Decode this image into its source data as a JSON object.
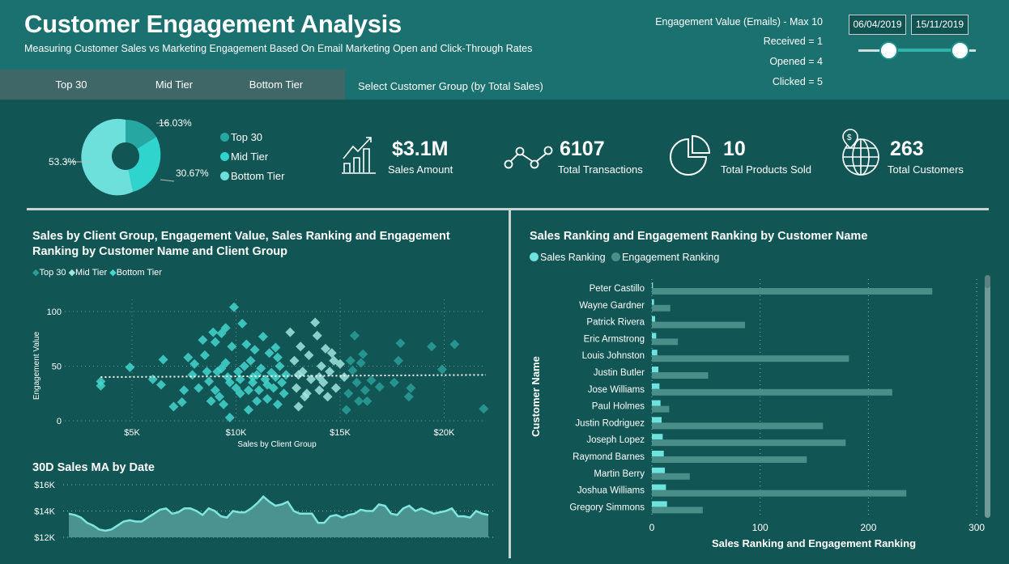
{
  "header": {
    "title": "Customer Engagement Analysis",
    "subtitle": "Measuring Customer Sales vs Marketing Engagement Based On Email Marketing Open and Click-Through Rates",
    "tabs": [
      "Top 30",
      "Mid Tier",
      "Bottom Tier"
    ],
    "select_label": "Select Customer Group (by Total Sales)",
    "engagement_lines": [
      "Engagement Value (Emails) - Max 10",
      "Received = 1",
      "Opened = 4",
      "Clicked = 5"
    ],
    "date_start": "06/04/2019",
    "date_end": "15/11/2019",
    "slider_range_fraction": [
      0.25,
      0.86
    ]
  },
  "colors": {
    "header": "#1b7170",
    "body": "#115555",
    "top30": "#2a9f99",
    "mid": "#9fe6e1",
    "bottom": "#45d6ce",
    "sales_rank": "#6ee3dd",
    "eng_rank": "#4a8e8a"
  },
  "donut": {
    "slices": [
      {
        "name": "Top 30",
        "pct": 16.03,
        "label": "16.03%",
        "color": "#27a7a1"
      },
      {
        "name": "Mid Tier",
        "pct": 30.67,
        "label": "30.67%",
        "color": "#2fd4cd"
      },
      {
        "name": "Bottom Tier",
        "pct": 53.3,
        "label": "53.3%",
        "color": "#6ee0db"
      }
    ]
  },
  "kpis": [
    {
      "value": "$3.1M",
      "label": "Sales Amount",
      "icon": "bar-growth-icon"
    },
    {
      "value": "6107",
      "label": "Total Transactions",
      "icon": "network-nodes-icon"
    },
    {
      "value": "10",
      "label": "Total Products Sold",
      "icon": "pie-chart-icon"
    },
    {
      "value": "263",
      "label": "Total Customers",
      "icon": "globe-dollar-icon"
    }
  ],
  "chart_data": [
    {
      "type": "scatter",
      "title": "Sales by Client Group, Engagement Value, Sales Ranking and Engagement Ranking by Customer Name and Client Group",
      "legend": [
        "Top 30",
        "Mid Tier",
        "Bottom Tier"
      ],
      "xlabel": "Sales by Client Group",
      "ylabel": "Engagement Value",
      "xticks": [
        {
          "v": 5,
          "label": "$5K"
        },
        {
          "v": 10,
          "label": "$10K"
        },
        {
          "v": 15,
          "label": "$15K"
        },
        {
          "v": 20,
          "label": "$20K"
        }
      ],
      "yticks": [
        {
          "v": 0,
          "label": "0"
        },
        {
          "v": 50,
          "label": "50"
        },
        {
          "v": 100,
          "label": "100"
        }
      ],
      "xlim": [
        1.8,
        22
      ],
      "ylim": [
        0,
        100
      ],
      "trend": {
        "x": [
          3.5,
          22
        ],
        "y": [
          40,
          42
        ]
      },
      "points": [
        [
          3.5,
          36,
          "B"
        ],
        [
          3.5,
          32,
          "B"
        ],
        [
          4.9,
          49,
          "B"
        ],
        [
          6,
          38,
          "B"
        ],
        [
          6.4,
          33,
          "B"
        ],
        [
          6.5,
          56,
          "B"
        ],
        [
          7,
          13,
          "B"
        ],
        [
          7.4,
          17,
          "B"
        ],
        [
          7.5,
          28,
          "B"
        ],
        [
          7.7,
          58,
          "B"
        ],
        [
          7.9,
          42,
          "B"
        ],
        [
          8,
          52,
          "B"
        ],
        [
          8.2,
          30,
          "B"
        ],
        [
          8.4,
          74,
          "B"
        ],
        [
          8.5,
          60,
          "B"
        ],
        [
          8.7,
          36,
          "B"
        ],
        [
          8.8,
          18,
          "B"
        ],
        [
          8.9,
          81,
          "B"
        ],
        [
          9,
          72,
          "B"
        ],
        [
          9.1,
          45,
          "B"
        ],
        [
          9.2,
          22,
          "B"
        ],
        [
          9.3,
          80,
          "B"
        ],
        [
          9.4,
          15,
          "B"
        ],
        [
          9.5,
          85,
          "B"
        ],
        [
          9.5,
          53,
          "B"
        ],
        [
          9.6,
          40,
          "B"
        ],
        [
          9.7,
          3,
          "B"
        ],
        [
          9.8,
          68,
          "B"
        ],
        [
          9.9,
          104,
          "B"
        ],
        [
          10,
          30,
          "B"
        ],
        [
          10.1,
          45,
          "B"
        ],
        [
          10.2,
          25,
          "B"
        ],
        [
          10.3,
          89,
          "B"
        ],
        [
          10.5,
          70,
          "B"
        ],
        [
          10.6,
          10,
          "B"
        ],
        [
          10.7,
          55,
          "B"
        ],
        [
          10.8,
          35,
          "B"
        ],
        [
          10.9,
          65,
          "B"
        ],
        [
          11,
          42,
          "B"
        ],
        [
          11.1,
          28,
          "B"
        ],
        [
          11.2,
          48,
          "B"
        ],
        [
          11.3,
          77,
          "B"
        ],
        [
          11.4,
          38,
          "B"
        ],
        [
          11.5,
          20,
          "B"
        ],
        [
          11.6,
          62,
          "B"
        ],
        [
          11.7,
          44,
          "B"
        ],
        [
          11.8,
          30,
          "B"
        ],
        [
          11.9,
          67,
          "B"
        ],
        [
          12,
          15,
          "B"
        ],
        [
          12.1,
          50,
          "B"
        ],
        [
          12.2,
          35,
          "B"
        ],
        [
          12.3,
          25,
          "B"
        ],
        [
          12.4,
          42,
          "B"
        ],
        [
          8.6,
          45,
          "B"
        ],
        [
          9,
          28,
          "B"
        ],
        [
          10.4,
          50,
          "B"
        ],
        [
          11,
          18,
          "B"
        ],
        [
          12,
          58,
          "B"
        ],
        [
          10.8,
          40,
          "B"
        ],
        [
          9.7,
          35,
          "B"
        ],
        [
          10.2,
          38,
          "B"
        ],
        [
          11.5,
          33,
          "B"
        ],
        [
          10.6,
          28,
          "B"
        ],
        [
          11.9,
          40,
          "B"
        ],
        [
          9.3,
          48,
          "B"
        ],
        [
          12.6,
          81,
          "M"
        ],
        [
          12.8,
          55,
          "M"
        ],
        [
          12.9,
          30,
          "M"
        ],
        [
          13,
          13,
          "M"
        ],
        [
          13.1,
          68,
          "M"
        ],
        [
          13.2,
          45,
          "M"
        ],
        [
          13.3,
          22,
          "M"
        ],
        [
          13.5,
          60,
          "M"
        ],
        [
          13.6,
          38,
          "M"
        ],
        [
          13.8,
          90,
          "M"
        ],
        [
          13.9,
          78,
          "M"
        ],
        [
          14,
          28,
          "M"
        ],
        [
          14.1,
          50,
          "M"
        ],
        [
          14.2,
          35,
          "M"
        ],
        [
          14.3,
          66,
          "M"
        ],
        [
          14.4,
          22,
          "M"
        ],
        [
          14.5,
          45,
          "M"
        ],
        [
          14.6,
          62,
          "M"
        ],
        [
          14.8,
          30,
          "M"
        ],
        [
          15,
          52,
          "M"
        ],
        [
          15.2,
          40,
          "M"
        ],
        [
          13.4,
          25,
          "M"
        ],
        [
          14.7,
          55,
          "M"
        ],
        [
          13,
          42,
          "M"
        ],
        [
          14,
          40,
          "M"
        ],
        [
          15.3,
          10,
          "T"
        ],
        [
          15.4,
          25,
          "T"
        ],
        [
          15.5,
          55,
          "T"
        ],
        [
          15.6,
          46,
          "T"
        ],
        [
          15.7,
          78,
          "T"
        ],
        [
          15.8,
          35,
          "T"
        ],
        [
          15.9,
          18,
          "T"
        ],
        [
          16,
          53,
          "T"
        ],
        [
          16.1,
          61,
          "T"
        ],
        [
          16.2,
          28,
          "T"
        ],
        [
          16.3,
          18,
          "T"
        ],
        [
          16.5,
          37,
          "T"
        ],
        [
          16.9,
          31,
          "T"
        ],
        [
          17.6,
          35,
          "T"
        ],
        [
          17.8,
          55,
          "T"
        ],
        [
          17.9,
          71,
          "T"
        ],
        [
          18.3,
          22,
          "T"
        ],
        [
          18.4,
          30,
          "T"
        ],
        [
          19.4,
          68,
          "T"
        ],
        [
          19.9,
          47,
          "T"
        ],
        [
          20.5,
          70,
          "T"
        ],
        [
          21.9,
          11,
          "T"
        ]
      ]
    },
    {
      "type": "area",
      "title": "30D Sales MA by Date",
      "yticks": [
        {
          "v": 12,
          "label": "$12K"
        },
        {
          "v": 14,
          "label": "$14K"
        },
        {
          "v": 16,
          "label": "$16K"
        }
      ],
      "ylim": [
        12,
        16
      ],
      "values": [
        13.8,
        13.7,
        13.5,
        13.1,
        12.9,
        12.6,
        12.5,
        12.6,
        12.9,
        13.2,
        13.3,
        13.2,
        13.2,
        13.5,
        13.8,
        14.1,
        14.2,
        13.8,
        13.9,
        14.2,
        14.2,
        14.0,
        13.7,
        14.2,
        14.0,
        13.6,
        13.5,
        14.0,
        13.9,
        13.9,
        14.2,
        14.6,
        15.1,
        14.7,
        14.4,
        14.5,
        14.7,
        14.0,
        13.8,
        13.8,
        13.8,
        13.1,
        13.1,
        13.6,
        13.7,
        13.5,
        13.7,
        13.8,
        14.1,
        14.0,
        14.0,
        14.5,
        14.4,
        13.8,
        13.7,
        14.2,
        14.4,
        14.0,
        14.2,
        14.0,
        13.8,
        13.9,
        14.0,
        14.2,
        13.6,
        13.6,
        13.5,
        14.0,
        13.8,
        13.7
      ]
    },
    {
      "type": "bar",
      "title": "Sales Ranking and Engagement Ranking by Customer Name",
      "legend": [
        "Sales Ranking",
        "Engagement Ranking"
      ],
      "xlabel": "Sales Ranking and Engagement Ranking",
      "ylabel": "Customer Name",
      "xlim": [
        0,
        300
      ],
      "xticks": [
        {
          "v": 0,
          "label": "0"
        },
        {
          "v": 100,
          "label": "100"
        },
        {
          "v": 200,
          "label": "200"
        },
        {
          "v": 300,
          "label": "300"
        }
      ],
      "categories": [
        "Peter Castillo",
        "Wayne Gardner",
        "Patrick Rivera",
        "Eric Armstrong",
        "Louis Johnston",
        "Justin Butler",
        "Jose Williams",
        "Paul Holmes",
        "Justin Rodriguez",
        "Joseph Lopez",
        "Raymond Barnes",
        "Martin Berry",
        "Joshua Williams",
        "Gregory Simmons"
      ],
      "series": [
        {
          "name": "Sales Ranking",
          "values": [
            1,
            2,
            3,
            4,
            5,
            6,
            7,
            8,
            9,
            10,
            11,
            12,
            13,
            14
          ]
        },
        {
          "name": "Engagement Ranking",
          "values": [
            259,
            17,
            86,
            24,
            182,
            52,
            222,
            16,
            158,
            179,
            143,
            35,
            235,
            47
          ]
        }
      ]
    }
  ]
}
